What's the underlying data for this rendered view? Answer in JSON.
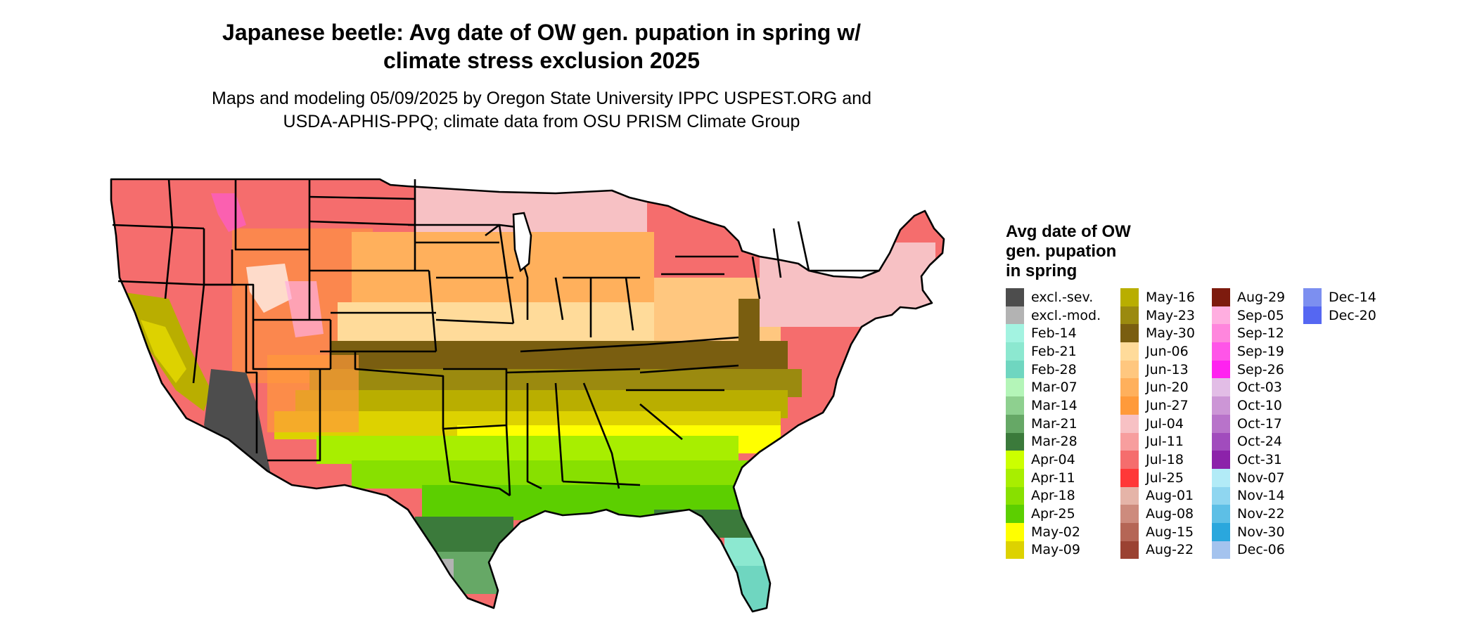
{
  "title": {
    "line1": "Japanese beetle: Avg date of OW gen. pupation in spring w/",
    "line2": "climate stress exclusion 2025"
  },
  "subtitle": {
    "line1": "Maps and modeling 05/09/2025 by Oregon State University IPPC USPEST.ORG and",
    "line2": "USDA-APHIS-PPQ; climate data from OSU PRISM Climate Group"
  },
  "legend": {
    "title_lines": [
      "Avg date of OW",
      "gen. pupation",
      "in spring"
    ],
    "columns": [
      [
        {
          "label": "excl.-sev.",
          "color": "#4d4d4d"
        },
        {
          "label": "excl.-mod.",
          "color": "#b3b3b3"
        },
        {
          "label": "Feb-14",
          "color": "#a3f3e1"
        },
        {
          "label": "Feb-21",
          "color": "#8ce8d0"
        },
        {
          "label": "Feb-28",
          "color": "#6fd6c0"
        },
        {
          "label": "Mar-07",
          "color": "#b4f5b8"
        },
        {
          "label": "Mar-14",
          "color": "#8ed08f"
        },
        {
          "label": "Mar-21",
          "color": "#66a866"
        },
        {
          "label": "Mar-28",
          "color": "#3b7a3b"
        },
        {
          "label": "Apr-04",
          "color": "#ccff00"
        },
        {
          "label": "Apr-11",
          "color": "#a8ee00"
        },
        {
          "label": "Apr-18",
          "color": "#88e000"
        },
        {
          "label": "Apr-25",
          "color": "#5ccf00"
        },
        {
          "label": "May-02",
          "color": "#ffff00"
        },
        {
          "label": "May-09",
          "color": "#ddd200"
        }
      ],
      [
        {
          "label": "May-16",
          "color": "#b9ae00"
        },
        {
          "label": "May-23",
          "color": "#9b8a0f"
        },
        {
          "label": "May-30",
          "color": "#7a5e10"
        },
        {
          "label": "Jun-06",
          "color": "#ffdb9a"
        },
        {
          "label": "Jun-13",
          "color": "#ffc77f"
        },
        {
          "label": "Jun-20",
          "color": "#ffb05c"
        },
        {
          "label": "Jun-27",
          "color": "#ff9a3a"
        },
        {
          "label": "Jul-04",
          "color": "#f7c1c4"
        },
        {
          "label": "Jul-11",
          "color": "#f79e9e"
        },
        {
          "label": "Jul-18",
          "color": "#f56d6d"
        },
        {
          "label": "Jul-25",
          "color": "#ff3838"
        },
        {
          "label": "Aug-01",
          "color": "#e5b4a8"
        },
        {
          "label": "Aug-08",
          "color": "#cd8b7d"
        },
        {
          "label": "Aug-15",
          "color": "#b56656"
        },
        {
          "label": "Aug-22",
          "color": "#9b4232"
        }
      ],
      [
        {
          "label": "Aug-29",
          "color": "#7d1b0e"
        },
        {
          "label": "Sep-05",
          "color": "#ffaee0"
        },
        {
          "label": "Sep-12",
          "color": "#ff86dd"
        },
        {
          "label": "Sep-19",
          "color": "#ff55e8"
        },
        {
          "label": "Sep-26",
          "color": "#ff22f0"
        },
        {
          "label": "Oct-03",
          "color": "#e2bde6"
        },
        {
          "label": "Oct-10",
          "color": "#cc96d6"
        },
        {
          "label": "Oct-17",
          "color": "#b873ca"
        },
        {
          "label": "Oct-24",
          "color": "#a14cbd"
        },
        {
          "label": "Oct-31",
          "color": "#8c22aa"
        },
        {
          "label": "Nov-07",
          "color": "#b2ebf7"
        },
        {
          "label": "Nov-14",
          "color": "#8fd6f0"
        },
        {
          "label": "Nov-22",
          "color": "#5dbfe6"
        },
        {
          "label": "Nov-30",
          "color": "#2aa7dd"
        },
        {
          "label": "Dec-06",
          "color": "#a4c3ee"
        }
      ],
      [
        {
          "label": "Dec-14",
          "color": "#7c8ff0"
        },
        {
          "label": "Dec-20",
          "color": "#5567f2"
        }
      ]
    ]
  }
}
